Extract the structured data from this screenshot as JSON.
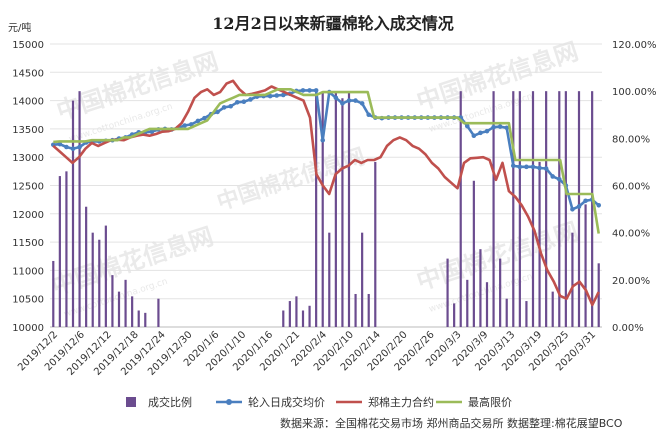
{
  "chart_data": {
    "type": "bar+line",
    "title": "12月2日以来新疆棉轮入成交情况",
    "ylabel_left": "元/吨",
    "ylim_left": [
      10000,
      15000
    ],
    "yticks_left": [
      "10000",
      "10500",
      "11000",
      "11500",
      "12000",
      "12500",
      "13000",
      "13500",
      "14000",
      "14500",
      "15000"
    ],
    "ylim_right": [
      0,
      1.2
    ],
    "yticks_right": [
      "0.00%",
      "20.00%",
      "40.00%",
      "60.00%",
      "80.00%",
      "100.00%",
      "120.00%"
    ],
    "x_tick_labels": [
      "2019/12/2",
      "2019/12/6",
      "2019/12/12",
      "2019/12/18",
      "2019/12/24",
      "2019/12/30",
      "2020/1/6",
      "2020/1/10",
      "2020/1/16",
      "2020/1/21",
      "2020/2/4",
      "2020/2/10",
      "2020/2/14",
      "2020/2/20",
      "2020/2/26",
      "2020/3/3",
      "2020/3/9",
      "2020/3/13",
      "2020/3/19",
      "2020/3/25",
      "2020/3/31"
    ],
    "source": "数据来源：全国棉花交易市场 郑州商品交易所 数据整理:棉花展望BCO",
    "watermark": "中国棉花信息网",
    "watermark_url": "www.cottonchina.org.cn",
    "series": [
      {
        "name": "成交比例",
        "kind": "bar",
        "axis": "right",
        "color": "#6b4c8f",
        "values": [
          0.28,
          0.64,
          0.66,
          0.96,
          1.0,
          0.51,
          0.4,
          0.37,
          0.43,
          0.22,
          0.15,
          0.2,
          0.13,
          0.07,
          0.06,
          0.0,
          0.12,
          0.0,
          0.0,
          0.0,
          0.0,
          0.0,
          0.0,
          0.0,
          0.0,
          0.0,
          0.0,
          0.0,
          0.0,
          0.0,
          0.0,
          0.0,
          0.0,
          0.0,
          0.0,
          0.07,
          0.11,
          0.13,
          0.07,
          0.09,
          1.0,
          1.0,
          0.4,
          1.0,
          0.97,
          1.0,
          0.14,
          0.4,
          0.14,
          0.7,
          0.0,
          0.0,
          0.0,
          0.0,
          0.0,
          0.0,
          0.0,
          0.0,
          0.0,
          0.0,
          0.29,
          0.1,
          1.0,
          0.2,
          0.62,
          0.33,
          0.19,
          1.0,
          0.29,
          0.12,
          1.0,
          1.0,
          0.11,
          1.0,
          0.7,
          1.0,
          0.15,
          1.0,
          1.0,
          0.4,
          1.0,
          0.52,
          1.0,
          0.27
        ]
      },
      {
        "name": "轮入日成交均价",
        "kind": "line",
        "axis": "left",
        "color": "#4a7fbf",
        "marker": true,
        "values": [
          13220,
          13230,
          13180,
          13150,
          13180,
          13260,
          13280,
          13280,
          13290,
          13300,
          13330,
          13350,
          13400,
          13440,
          13440,
          13450,
          13490,
          13500,
          13490,
          13520,
          13560,
          13580,
          13640,
          13690,
          13760,
          13800,
          13880,
          13900,
          13970,
          13980,
          14020,
          14070,
          14080,
          14080,
          14090,
          14100,
          14120,
          14170,
          14180,
          14180,
          14180,
          13300,
          14150,
          14050,
          13950,
          14000,
          14000,
          13950,
          13750,
          13700,
          13690,
          13700,
          13700,
          13700,
          13700,
          13700,
          13700,
          13700,
          13700,
          13700,
          13700,
          13700,
          13700,
          13550,
          13380,
          13430,
          13460,
          13530,
          13540,
          13520,
          12850,
          12830,
          12830,
          12830,
          12810,
          12800,
          12660,
          12610,
          12500,
          12080,
          12130,
          12230,
          12250,
          12150
        ]
      },
      {
        "name": "郑棉主力合约",
        "kind": "line",
        "axis": "left",
        "color": "#c0504d",
        "marker": false,
        "values": [
          13200,
          13100,
          13000,
          12900,
          13000,
          13150,
          13250,
          13200,
          13250,
          13300,
          13310,
          13300,
          13350,
          13380,
          13400,
          13380,
          13410,
          13450,
          13460,
          13500,
          13600,
          13800,
          14050,
          14150,
          14200,
          14100,
          14150,
          14300,
          14350,
          14200,
          14100,
          14120,
          14150,
          14180,
          14250,
          14200,
          14150,
          14100,
          14050,
          14000,
          13700,
          12700,
          12500,
          12350,
          12700,
          12800,
          12850,
          12950,
          12900,
          12950,
          12950,
          13000,
          13200,
          13300,
          13350,
          13300,
          13200,
          13150,
          13050,
          12900,
          12800,
          12650,
          12550,
          12450,
          12900,
          12980,
          12990,
          13000,
          12950,
          12600,
          12900,
          12400,
          12300,
          12150,
          11950,
          11700,
          11300,
          11000,
          10800,
          10550,
          10500,
          10720,
          10800,
          10650,
          10390,
          10620
        ]
      },
      {
        "name": "最高限价",
        "kind": "line",
        "axis": "left",
        "color": "#9bbb59",
        "marker": false,
        "values": [
          13270,
          13280,
          13280,
          13280,
          13280,
          13280,
          13300,
          13300,
          13300,
          13300,
          13300,
          13350,
          13350,
          13400,
          13450,
          13500,
          13500,
          13500,
          13500,
          13500,
          13500,
          13500,
          13550,
          13600,
          13650,
          13800,
          13950,
          14000,
          14050,
          14100,
          14100,
          14100,
          14100,
          14100,
          14150,
          14200,
          14200,
          14200,
          14150,
          14100,
          14100,
          14100,
          14150,
          14150,
          14150,
          14150,
          14150,
          14150,
          14150,
          14150,
          13700,
          13700,
          13700,
          13700,
          13700,
          13700,
          13700,
          13700,
          13700,
          13700,
          13700,
          13700,
          13700,
          13700,
          13600,
          13600,
          13600,
          13600,
          13600,
          13600,
          13600,
          13600,
          12950,
          12950,
          12950,
          12950,
          12950,
          12950,
          12950,
          12950,
          12350,
          12350,
          12350,
          12350,
          12350,
          11650
        ]
      }
    ]
  }
}
